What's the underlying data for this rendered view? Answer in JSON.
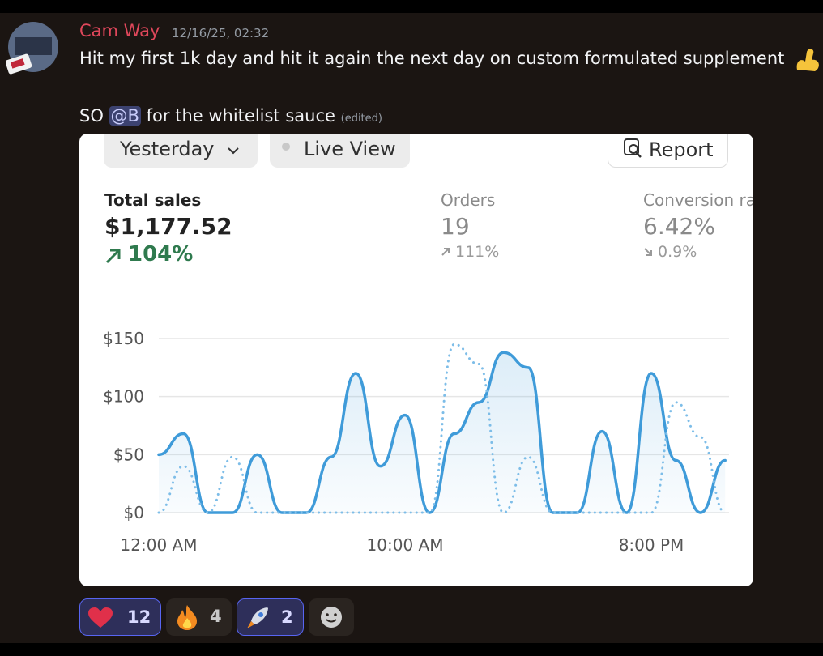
{
  "message": {
    "author": "Cam Way",
    "timestamp": "12/16/25, 02:32",
    "line1": "Hit my first 1k day and hit it again the next day on custom formulated supplement",
    "line2_start": "SO",
    "mention": "@B",
    "line2_end": "for the whitelist sauce",
    "edited": "(edited)",
    "reactions": [
      {
        "count": "12"
      },
      {
        "count": "4"
      },
      {
        "count": "2"
      }
    ]
  },
  "card": {
    "range_button": "Yesterday",
    "live_button": "Live View",
    "report_button": "Report",
    "stats": [
      {
        "label": "Total sales",
        "value": "$1,177.52",
        "change": "104%"
      },
      {
        "label": "Orders",
        "value": "19",
        "change": "111%"
      },
      {
        "label": "Conversion rate",
        "value": "6.42%",
        "change": "0.9%"
      }
    ]
  },
  "chart_data": {
    "type": "line",
    "x": [
      0,
      1,
      2,
      3,
      4,
      5,
      6,
      7,
      8,
      9,
      10,
      11,
      12,
      13,
      14,
      15,
      16,
      17,
      18,
      19,
      20,
      21,
      22,
      23
    ],
    "series": [
      {
        "color": "#3f9bd9",
        "style": "solid",
        "values": [
          50,
          68,
          0,
          0,
          50,
          0,
          0,
          48,
          120,
          40,
          84,
          0,
          68,
          95,
          138,
          125,
          0,
          0,
          70,
          0,
          120,
          45,
          0,
          45
        ]
      },
      {
        "color": "#7dbde8",
        "style": "dotted",
        "values": [
          0,
          40,
          0,
          48,
          0,
          0,
          0,
          0,
          0,
          0,
          0,
          0,
          145,
          128,
          0,
          48,
          0,
          0,
          0,
          0,
          0,
          95,
          65,
          0
        ]
      }
    ],
    "xlim": [
      0,
      23
    ],
    "xticks": [
      {
        "value": 0,
        "label": "12:00 AM"
      },
      {
        "value": 10,
        "label": "10:00 AM"
      },
      {
        "value": 20,
        "label": "8:00 PM"
      }
    ],
    "ylim": [
      0,
      150
    ],
    "yticks": [
      {
        "value": 0,
        "label": "$0"
      },
      {
        "value": 50,
        "label": "$50"
      },
      {
        "value": 100,
        "label": "$100"
      },
      {
        "value": 150,
        "label": "$150"
      }
    ],
    "grid": true
  }
}
